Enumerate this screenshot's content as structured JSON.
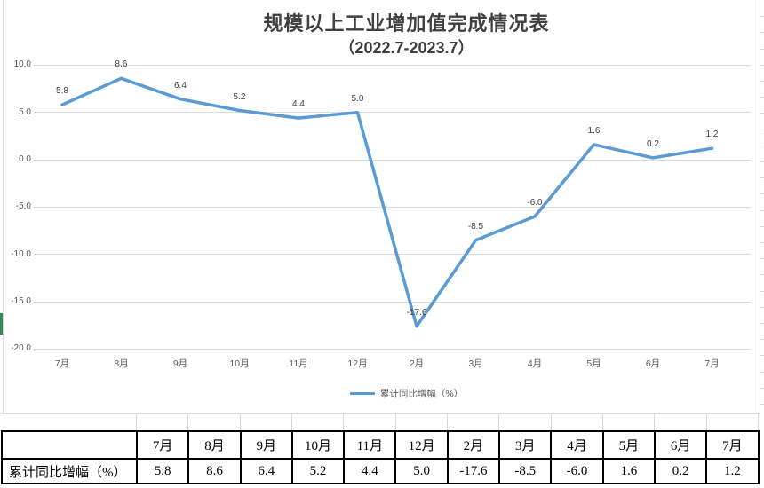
{
  "chart_data": {
    "type": "line",
    "title": "规模以上工业增加值完成情况表",
    "subtitle": "（2022.7-2023.7）",
    "categories": [
      "7月",
      "8月",
      "9月",
      "10月",
      "11月",
      "12月",
      "2月",
      "3月",
      "4月",
      "5月",
      "6月",
      "7月"
    ],
    "series": [
      {
        "name": "累计同比增幅（%）",
        "values": [
          5.8,
          8.6,
          6.4,
          5.2,
          4.4,
          5.0,
          -17.6,
          -8.5,
          -6.0,
          1.6,
          0.2,
          1.2
        ],
        "labels": [
          "5.8",
          "8.6",
          "6.4",
          "5.2",
          "4.4",
          "5.0",
          "-17.6",
          "-8.5",
          "-6.0",
          "1.6",
          "0.2",
          "1.2"
        ]
      }
    ],
    "xlabel": "",
    "ylabel": "",
    "ylim": [
      -20,
      10
    ],
    "ytick_step": 5,
    "ytick_labels": [
      "10.0",
      "5.0",
      "0.0",
      "-5.0",
      "-10.0",
      "-15.0",
      "-20.0"
    ],
    "grid": true,
    "legend_position": "bottom",
    "data_labels": "above"
  },
  "legend": {
    "label": "累计同比增幅（%）"
  },
  "table": {
    "row_label": "累计同比增幅（%）",
    "headers": [
      "7月",
      "8月",
      "9月",
      "10月",
      "11月",
      "12月",
      "2月",
      "3月",
      "4月",
      "5月",
      "6月",
      "7月"
    ],
    "values": [
      "5.8",
      "8.6",
      "6.4",
      "5.2",
      "4.4",
      "5.0",
      "-17.6",
      "-8.5",
      "-6.0",
      "1.6",
      "0.2",
      "1.2"
    ]
  },
  "colors": {
    "line": "#5B9BD5",
    "grid": "#D9D9D9",
    "title_text": "#404040",
    "axis_text": "#595959",
    "data_label_text": "#3F3F3F",
    "table_border": "#000000",
    "chart_border": "#D8D8D8",
    "green_marker": "#2E8B57"
  }
}
